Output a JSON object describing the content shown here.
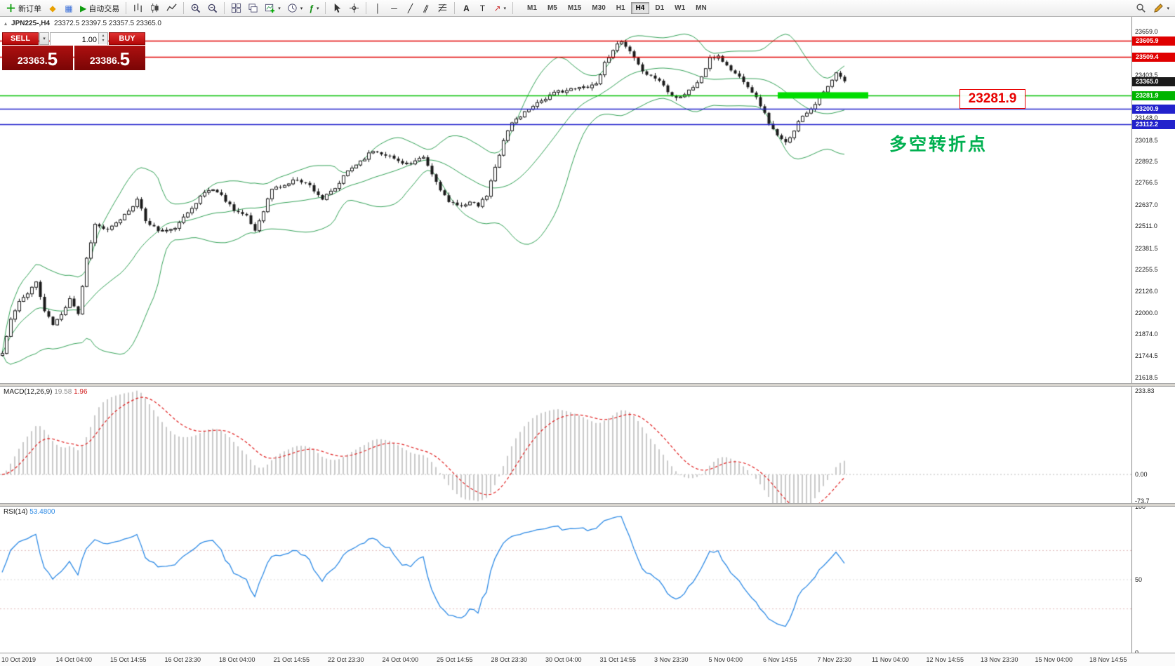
{
  "toolbar": {
    "new_order_label": "新订单",
    "auto_trading_label": "自动交易",
    "timeframes": [
      "M1",
      "M5",
      "M15",
      "M30",
      "H1",
      "H4",
      "D1",
      "W1",
      "MN"
    ],
    "active_timeframe": "H4"
  },
  "chart": {
    "title": "JPN225-,H4",
    "ohlc": "23372.5 23397.5 23357.5 23365.0",
    "annotation": "多空转折点",
    "price_label": "23281.9"
  },
  "trade_panel": {
    "sell_label": "SELL",
    "buy_label": "BUY",
    "volume": "1.00",
    "sell_price": "23363.",
    "sell_price_big": "5",
    "buy_price": "23386.",
    "buy_price_big": "5"
  },
  "price_axis": {
    "labels": [
      {
        "value": 23659.0,
        "text": "23659.0"
      },
      {
        "value": 23403.5,
        "text": "23403.5"
      },
      {
        "value": 23148.0,
        "text": "23148.0"
      },
      {
        "value": 23018.5,
        "text": "23018.5"
      },
      {
        "value": 22892.5,
        "text": "22892.5"
      },
      {
        "value": 22766.5,
        "text": "22766.5"
      },
      {
        "value": 22637.0,
        "text": "22637.0"
      },
      {
        "value": 22511.0,
        "text": "22511.0"
      },
      {
        "value": 22381.5,
        "text": "22381.5"
      },
      {
        "value": 22255.5,
        "text": "22255.5"
      },
      {
        "value": 22126.0,
        "text": "22126.0"
      },
      {
        "value": 22000.0,
        "text": "22000.0"
      },
      {
        "value": 21874.0,
        "text": "21874.0"
      },
      {
        "value": 21744.5,
        "text": "21744.5"
      },
      {
        "value": 21618.5,
        "text": "21618.5"
      }
    ],
    "tags": [
      {
        "value": 23605.9,
        "text": "23605.9",
        "bg": "#e00000"
      },
      {
        "value": 23509.4,
        "text": "23509.4",
        "bg": "#e00000"
      },
      {
        "value": 23365.0,
        "text": "23365.0",
        "bg": "#1a1a1a"
      },
      {
        "value": 23281.9,
        "text": "23281.9",
        "bg": "#00b400"
      },
      {
        "value": 23200.9,
        "text": "23200.9",
        "bg": "#2222cc"
      },
      {
        "value": 23112.2,
        "text": "23112.2",
        "bg": "#2222cc"
      }
    ]
  },
  "macd": {
    "name": "MACD(12,26,9)",
    "value": "19.58",
    "signal_value": "1.96",
    "axis": [
      {
        "value": 233.83,
        "text": "233.83"
      },
      {
        "value": 0,
        "text": "0.00"
      },
      {
        "value": -73.7,
        "text": "-73.7"
      }
    ]
  },
  "rsi": {
    "name": "RSI(14)",
    "value": "53.4800",
    "axis": [
      {
        "value": 100,
        "text": "100"
      },
      {
        "value": 50,
        "text": "50"
      },
      {
        "value": 0,
        "text": "0"
      }
    ]
  },
  "date_axis": [
    "10 Oct 2019",
    "14 Oct 04:00",
    "15 Oct 14:55",
    "16 Oct 23:30",
    "18 Oct 04:00",
    "21 Oct 14:55",
    "22 Oct 23:30",
    "24 Oct 04:00",
    "25 Oct 14:55",
    "28 Oct 23:30",
    "30 Oct 04:00",
    "31 Oct 14:55",
    "3 Nov 23:30",
    "5 Nov 04:00",
    "6 Nov 14:55",
    "7 Nov 23:30",
    "11 Nov 04:00",
    "12 Nov 14:55",
    "13 Nov 23:30",
    "15 Nov 04:00",
    "18 Nov 14:55"
  ],
  "chart_data": {
    "type": "candlestick",
    "symbol": "JPN225-",
    "timeframe": "H4",
    "bars": 201,
    "last_close": 23365.0,
    "seed": 11,
    "y_range": {
      "top": 23745,
      "bottom": 21585
    },
    "price_anchors": [
      [
        0,
        21760
      ],
      [
        2,
        21960
      ],
      [
        4,
        22060
      ],
      [
        6,
        22120
      ],
      [
        8,
        22180
      ],
      [
        10,
        22010
      ],
      [
        12,
        21930
      ],
      [
        14,
        21985
      ],
      [
        16,
        22090
      ],
      [
        18,
        21995
      ],
      [
        20,
        22320
      ],
      [
        22,
        22520
      ],
      [
        25,
        22485
      ],
      [
        27,
        22525
      ],
      [
        30,
        22605
      ],
      [
        32,
        22665
      ],
      [
        34,
        22545
      ],
      [
        37,
        22485
      ],
      [
        40,
        22485
      ],
      [
        42,
        22525
      ],
      [
        45,
        22625
      ],
      [
        48,
        22710
      ],
      [
        50,
        22730
      ],
      [
        52,
        22690
      ],
      [
        55,
        22610
      ],
      [
        58,
        22565
      ],
      [
        60,
        22485
      ],
      [
        62,
        22605
      ],
      [
        64,
        22730
      ],
      [
        67,
        22750
      ],
      [
        70,
        22790
      ],
      [
        73,
        22750
      ],
      [
        76,
        22670
      ],
      [
        79,
        22730
      ],
      [
        82,
        22835
      ],
      [
        85,
        22895
      ],
      [
        88,
        22955
      ],
      [
        91,
        22935
      ],
      [
        94,
        22895
      ],
      [
        97,
        22875
      ],
      [
        100,
        22915
      ],
      [
        102,
        22815
      ],
      [
        104,
        22730
      ],
      [
        106,
        22650
      ],
      [
        108,
        22630
      ],
      [
        111,
        22650
      ],
      [
        113,
        22630
      ],
      [
        115,
        22690
      ],
      [
        117,
        22855
      ],
      [
        119,
        23020
      ],
      [
        121,
        23120
      ],
      [
        123,
        23160
      ],
      [
        126,
        23225
      ],
      [
        129,
        23265
      ],
      [
        132,
        23305
      ],
      [
        135,
        23315
      ],
      [
        138,
        23330
      ],
      [
        141,
        23350
      ],
      [
        143,
        23470
      ],
      [
        145,
        23555
      ],
      [
        147,
        23595
      ],
      [
        149,
        23535
      ],
      [
        151,
        23455
      ],
      [
        153,
        23410
      ],
      [
        156,
        23370
      ],
      [
        158,
        23310
      ],
      [
        160,
        23268
      ],
      [
        162,
        23288
      ],
      [
        164,
        23330
      ],
      [
        166,
        23390
      ],
      [
        168,
        23495
      ],
      [
        170,
        23515
      ],
      [
        172,
        23455
      ],
      [
        174,
        23410
      ],
      [
        176,
        23370
      ],
      [
        178,
        23305
      ],
      [
        180,
        23225
      ],
      [
        182,
        23120
      ],
      [
        184,
        23040
      ],
      [
        186,
        23000
      ],
      [
        188,
        23080
      ],
      [
        190,
        23165
      ],
      [
        192,
        23205
      ],
      [
        194,
        23268
      ],
      [
        196,
        23330
      ],
      [
        198,
        23410
      ],
      [
        200,
        23365
      ]
    ],
    "overlays": {
      "bollinger_period": 20,
      "bollinger_deviation": 2
    },
    "indicators": {
      "macd": [
        12,
        26,
        9
      ],
      "rsi": 14
    },
    "macd_range": {
      "max": 245,
      "min": -80,
      "max_label": 233.83
    },
    "hlines": [
      {
        "price": 23605.9,
        "color": "#e00000",
        "width": 1.4
      },
      {
        "price": 23509.4,
        "color": "#e00000",
        "width": 1.4
      },
      {
        "price": 23281.9,
        "color": "#00c000",
        "width": 1.4
      },
      {
        "price": 23200.9,
        "color": "#2222cc",
        "width": 1.6
      },
      {
        "price": 23112.2,
        "color": "#2222cc",
        "width": 1.6
      }
    ],
    "highlight": {
      "price": 23281.9,
      "x_from": 1108,
      "x_to": 1237,
      "thickness": 9,
      "color": "#00dd00"
    },
    "colors": {
      "candle_up": "#ffffff",
      "candle_down": "#1a1a1a",
      "candle_border": "#1a1a1a",
      "bollinger": "#35a258",
      "macd_hist": "#c9c9c9",
      "macd_signal": "#e02020",
      "rsi_line": "#2d8ae5",
      "rsi_levels": "#dfb8b8",
      "annotation_green": "#00b050",
      "label_red": "#e80000"
    }
  }
}
